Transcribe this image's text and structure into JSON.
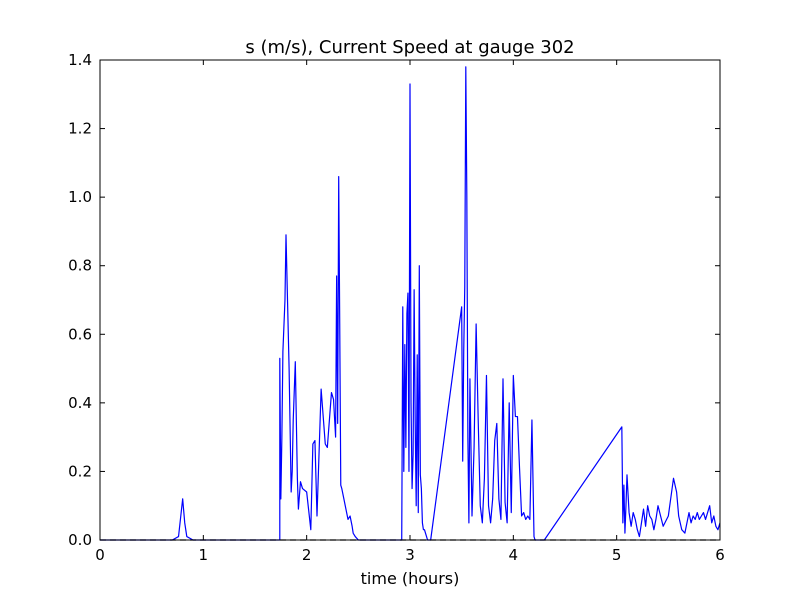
{
  "chart_data": {
    "type": "line",
    "title": "s (m/s), Current Speed at gauge 302",
    "xlabel": "time (hours)",
    "ylabel": "",
    "xlim": [
      0,
      6
    ],
    "ylim": [
      0,
      1.4
    ],
    "xticks": [
      "0",
      "1",
      "2",
      "3",
      "4",
      "5",
      "6"
    ],
    "yticks": [
      "0.0",
      "0.2",
      "0.4",
      "0.6",
      "0.8",
      "1.0",
      "1.2",
      "1.4"
    ],
    "grid": false,
    "series": [
      {
        "color": "#0000ff",
        "style": "solid",
        "x": [
          0,
          0.7,
          0.76,
          0.8,
          0.82,
          0.84,
          0.9,
          1.74,
          1.74,
          1.75,
          1.76,
          1.77,
          1.79,
          1.8,
          1.83,
          1.85,
          1.86,
          1.87,
          1.89,
          1.9,
          1.91,
          1.92,
          1.94,
          1.96,
          2.0,
          2.04,
          2.06,
          2.08,
          2.1,
          2.14,
          2.18,
          2.2,
          2.24,
          2.26,
          2.28,
          2.29,
          2.3,
          2.31,
          2.32,
          2.33,
          2.34,
          2.36,
          2.4,
          2.42,
          2.44,
          2.45,
          2.47,
          2.5,
          2.92,
          2.93,
          2.94,
          2.95,
          2.96,
          2.97,
          2.98,
          2.99,
          3.0,
          3.01,
          3.02,
          3.03,
          3.04,
          3.05,
          3.06,
          3.07,
          3.08,
          3.09,
          3.1,
          3.11,
          3.12,
          3.13,
          3.14,
          3.15,
          3.16,
          3.17,
          3.2,
          3.5,
          3.51,
          3.52,
          3.53,
          3.54,
          3.55,
          3.56,
          3.57,
          3.58,
          3.6,
          3.62,
          3.64,
          3.66,
          3.68,
          3.7,
          3.72,
          3.74,
          3.76,
          3.78,
          3.8,
          3.82,
          3.84,
          3.86,
          3.88,
          3.9,
          3.92,
          3.94,
          3.96,
          3.98,
          4.0,
          4.02,
          4.04,
          4.06,
          4.08,
          4.1,
          4.12,
          4.14,
          4.16,
          4.18,
          4.2,
          4.21,
          4.22,
          4.23,
          4.24,
          4.3,
          5.05,
          5.06,
          5.07,
          5.08,
          5.09,
          5.1,
          5.12,
          5.14,
          5.16,
          5.18,
          5.2,
          5.22,
          5.24,
          5.26,
          5.28,
          5.3,
          5.32,
          5.34,
          5.36,
          5.38,
          5.4,
          5.45,
          5.5,
          5.55,
          5.58,
          5.6,
          5.63,
          5.66,
          5.7,
          5.72,
          5.74,
          5.76,
          5.78,
          5.8,
          5.82,
          5.84,
          5.86,
          5.88,
          5.9,
          5.92,
          5.94,
          5.96,
          5.98,
          6.0
        ],
        "y": [
          0,
          0,
          0.01,
          0.12,
          0.05,
          0.01,
          0,
          0,
          0.53,
          0.12,
          0.3,
          0.55,
          0.7,
          0.89,
          0.5,
          0.14,
          0.2,
          0.35,
          0.52,
          0.35,
          0.18,
          0.09,
          0.17,
          0.15,
          0.14,
          0.03,
          0.28,
          0.29,
          0.07,
          0.44,
          0.28,
          0.27,
          0.43,
          0.41,
          0.3,
          0.77,
          0.34,
          1.06,
          0.63,
          0.16,
          0.15,
          0.12,
          0.06,
          0.07,
          0.04,
          0.02,
          0.01,
          0,
          0,
          0.68,
          0.2,
          0.57,
          0.27,
          0.66,
          0.72,
          0.2,
          1.33,
          0.4,
          0.15,
          0.25,
          0.73,
          0.35,
          0.1,
          0.54,
          0.08,
          0.8,
          0.19,
          0.15,
          0.05,
          0.03,
          0.03,
          0.02,
          0.01,
          0,
          0,
          0.68,
          0.23,
          0.55,
          0.74,
          1.38,
          1.0,
          0.3,
          0.05,
          0.47,
          0.07,
          0.27,
          0.63,
          0.35,
          0.1,
          0.05,
          0.18,
          0.48,
          0.1,
          0.05,
          0.12,
          0.29,
          0.34,
          0.12,
          0.06,
          0.47,
          0.11,
          0.05,
          0.4,
          0.08,
          0.48,
          0.36,
          0.36,
          0.21,
          0.07,
          0.08,
          0.06,
          0.07,
          0.06,
          0.35,
          0.01,
          0,
          0,
          0,
          0,
          0,
          0.33,
          0.05,
          0.16,
          0.02,
          0.1,
          0.19,
          0.08,
          0.04,
          0.08,
          0.06,
          0.03,
          0.01,
          0.05,
          0.09,
          0.04,
          0.1,
          0.07,
          0.06,
          0.03,
          0.06,
          0.1,
          0.04,
          0.07,
          0.18,
          0.14,
          0.07,
          0.03,
          0.02,
          0.08,
          0.05,
          0.07,
          0.06,
          0.08,
          0.06,
          0.07,
          0.08,
          0.06,
          0.08,
          0.1,
          0.05,
          0.07,
          0.04,
          0.03,
          0.05
        ]
      },
      {
        "color": "#000000",
        "style": "dashed",
        "x": [
          0,
          6
        ],
        "y": [
          0,
          0
        ]
      }
    ]
  }
}
